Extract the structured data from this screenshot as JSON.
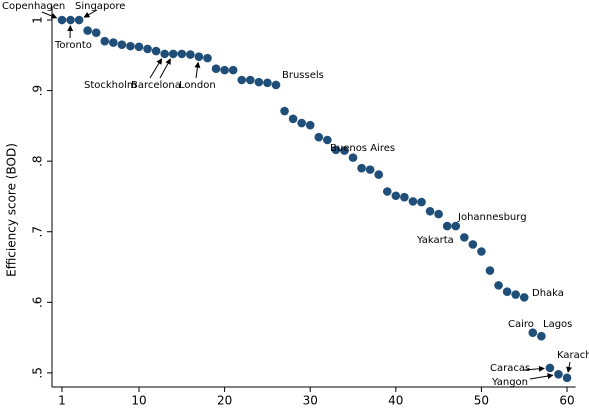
{
  "chart_data": {
    "type": "scatter",
    "y_label": "Efficiency score (BOD)",
    "x": [
      1,
      2,
      3,
      4,
      5,
      6,
      7,
      8,
      9,
      10,
      11,
      12,
      13,
      14,
      15,
      16,
      17,
      18,
      19,
      20,
      21,
      22,
      23,
      24,
      25,
      26,
      27,
      28,
      29,
      30,
      31,
      32,
      33,
      34,
      35,
      36,
      37,
      38,
      39,
      40,
      41,
      42,
      43,
      44,
      45,
      46,
      47,
      48,
      49,
      50,
      51,
      52,
      53,
      54,
      55,
      56,
      57,
      58,
      59,
      60
    ],
    "values": [
      1.0,
      1.0,
      1.0,
      0.985,
      0.982,
      0.97,
      0.968,
      0.965,
      0.963,
      0.962,
      0.959,
      0.956,
      0.952,
      0.952,
      0.952,
      0.951,
      0.948,
      0.946,
      0.931,
      0.929,
      0.929,
      0.915,
      0.915,
      0.912,
      0.911,
      0.908,
      0.871,
      0.86,
      0.854,
      0.851,
      0.834,
      0.83,
      0.816,
      0.815,
      0.805,
      0.79,
      0.788,
      0.781,
      0.757,
      0.751,
      0.749,
      0.743,
      0.742,
      0.729,
      0.725,
      0.708,
      0.708,
      0.692,
      0.682,
      0.672,
      0.645,
      0.624,
      0.615,
      0.611,
      0.607,
      0.557,
      0.552,
      0.507,
      0.498,
      0.493
    ],
    "color": "#1f4e79",
    "xlim": [
      0,
      61
    ],
    "ylim": [
      0.48,
      1.02
    ],
    "xticks": [
      1,
      10,
      20,
      30,
      40,
      50,
      60
    ],
    "yticks": [
      {
        "value": 0.5,
        "label": ".5"
      },
      {
        "value": 0.6,
        "label": ".6"
      },
      {
        "value": 0.7,
        "label": ".7"
      },
      {
        "value": 0.8,
        "label": ".8"
      },
      {
        "value": 0.9,
        "label": ".9"
      },
      1
    ],
    "annotations": [
      "Copenhagen",
      "Singapore",
      "Toronto",
      "Stockholm",
      "Barcelona",
      "London",
      "Brussels",
      "Buenos Aires",
      "Johannesburg",
      "Yakarta",
      "Dhaka",
      "Cairo",
      "Lagos",
      "Karachi",
      "Caracas",
      "Yangon"
    ]
  }
}
